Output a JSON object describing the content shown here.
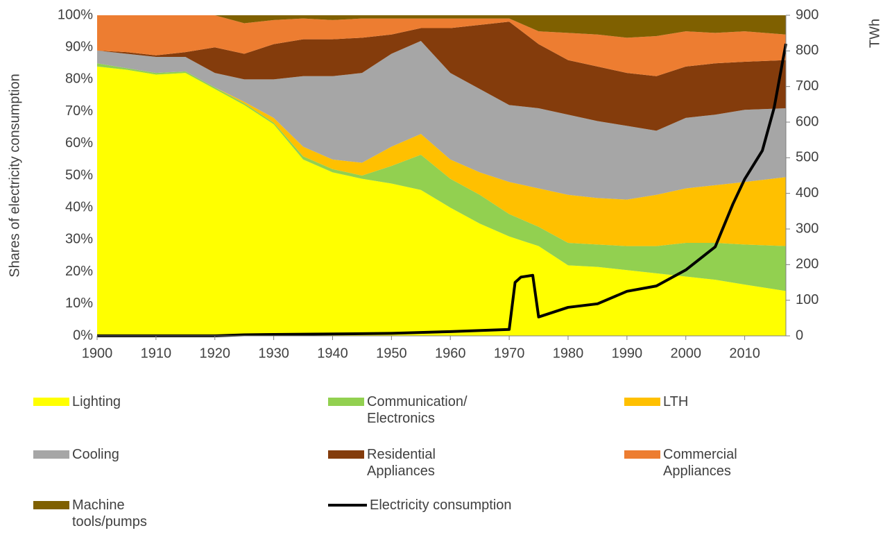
{
  "chart_data": {
    "type": "stacked-area",
    "y_label": "Shares of electricity consumption",
    "y2_label": "TWh",
    "x": [
      1900,
      1905,
      1910,
      1915,
      1920,
      1925,
      1930,
      1935,
      1940,
      1945,
      1950,
      1955,
      1960,
      1965,
      1970,
      1975,
      1980,
      1985,
      1990,
      1995,
      2000,
      2005,
      2010,
      2017
    ],
    "xlim": [
      1900,
      2017
    ],
    "xticks": [
      1900,
      1910,
      1920,
      1930,
      1940,
      1950,
      1960,
      1970,
      1980,
      1990,
      2000,
      2010
    ],
    "ylim": [
      0,
      100
    ],
    "yticks": [
      {
        "value": 0,
        "label": "0%"
      },
      {
        "value": 10,
        "label": "10%"
      },
      {
        "value": 20,
        "label": "20%"
      },
      {
        "value": 30,
        "label": "30%"
      },
      {
        "value": 40,
        "label": "40%"
      },
      {
        "value": 50,
        "label": "50%"
      },
      {
        "value": 60,
        "label": "60%"
      },
      {
        "value": 70,
        "label": "70%"
      },
      {
        "value": 80,
        "label": "80%"
      },
      {
        "value": 90,
        "label": "90%"
      },
      {
        "value": 100,
        "label": "100%"
      }
    ],
    "y2lim": [
      0,
      900
    ],
    "y2ticks": [
      0,
      100,
      200,
      300,
      400,
      500,
      600,
      700,
      800,
      900
    ],
    "legend": "bottom",
    "series": [
      {
        "name": "Lighting",
        "color": "#ffff00",
        "values": [
          84,
          83,
          81.5,
          82,
          77,
          72,
          66,
          55,
          51,
          49,
          47.5,
          45.5,
          40,
          35,
          31,
          28,
          22,
          21.5,
          20.5,
          19.5,
          18.5,
          17.5,
          16,
          14
        ]
      },
      {
        "name": "Communication/ Electronics",
        "color": "#92d050",
        "values": [
          1,
          0.5,
          0.5,
          0.5,
          0.5,
          0.5,
          0.5,
          1,
          1,
          1,
          5.5,
          11,
          9,
          9,
          7,
          6,
          7,
          7,
          7.5,
          8.5,
          10.5,
          11.5,
          12.5,
          14
        ]
      },
      {
        "name": "LTH",
        "color": "#ffc000",
        "values": [
          0,
          0,
          0,
          0,
          0,
          0.5,
          1.5,
          3,
          3,
          4,
          6,
          6.5,
          6,
          7,
          10,
          12,
          15,
          14.5,
          14.5,
          16,
          17,
          18,
          19.5,
          21.5
        ]
      },
      {
        "name": "Cooling",
        "color": "#a6a6a6",
        "values": [
          4,
          4.5,
          5,
          4.5,
          4.5,
          7,
          12,
          22,
          26,
          28,
          29,
          29,
          27,
          26,
          24,
          25,
          25,
          24,
          23,
          20,
          22,
          22,
          22.5,
          21.5
        ]
      },
      {
        "name": "Residential Appliances",
        "color": "#843c0c",
        "values": [
          0,
          0.5,
          0.5,
          1.5,
          8,
          8,
          11,
          11.5,
          11.5,
          11,
          6,
          4,
          14,
          20,
          26,
          20,
          17,
          17,
          16.5,
          17,
          16,
          16,
          15,
          15
        ]
      },
      {
        "name": "Commercial Appliances",
        "color": "#ed7d31",
        "values": [
          11,
          11.5,
          12.5,
          11.5,
          10,
          9.5,
          7.5,
          6.5,
          6,
          6,
          5,
          3,
          3,
          2,
          1,
          4,
          8.5,
          10,
          11,
          12.5,
          11,
          9.5,
          9.5,
          8
        ]
      },
      {
        "name": "Machine tools/pumps",
        "color": "#7f6000",
        "values": [
          0,
          0,
          0,
          0,
          0,
          2.5,
          1.5,
          1,
          1.5,
          1,
          1,
          1,
          1,
          1,
          1,
          5,
          5.5,
          6,
          7,
          6.5,
          5,
          5.5,
          5,
          6
        ]
      },
      {
        "name": "Electricity consumption",
        "type": "line",
        "axis": "y2",
        "color": "#000000",
        "x": [
          1900,
          1920,
          1925,
          1950,
          1960,
          1970,
          1971,
          1972,
          1974,
          1975,
          1980,
          1985,
          1990,
          1995,
          2000,
          2005,
          2008,
          2010,
          2013,
          2015,
          2017
        ],
        "values": [
          0,
          0,
          3,
          7,
          12,
          18,
          150,
          165,
          170,
          53,
          80,
          90,
          125,
          140,
          185,
          250,
          370,
          440,
          520,
          640,
          820
        ]
      }
    ]
  }
}
